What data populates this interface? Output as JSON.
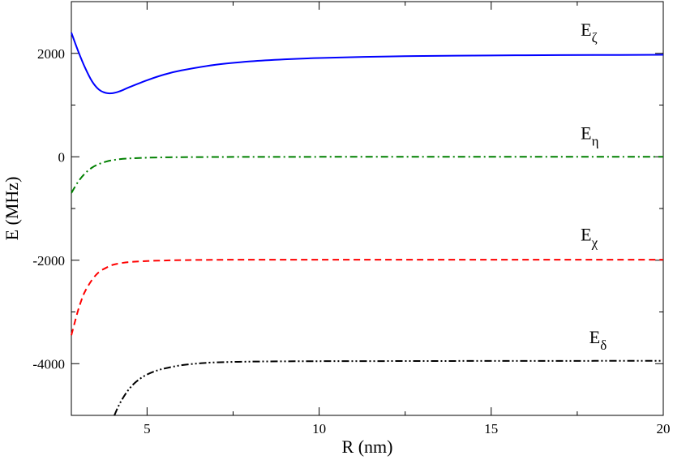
{
  "chart_data": {
    "type": "line",
    "xlabel": "R (nm)",
    "ylabel": "E (MHz)",
    "xlim": [
      2.8,
      20
    ],
    "ylim": [
      -5000,
      3000
    ],
    "xticks": [
      5,
      10,
      15,
      20
    ],
    "yticks": [
      -4000,
      -2000,
      0,
      2000
    ],
    "x_minor_step": 2.5,
    "y_minor_step": 1000,
    "grid": false,
    "series": [
      {
        "name": "E_ζ",
        "label_base": "E",
        "label_sub": "ζ",
        "color": "#0000ff",
        "dash": "solid",
        "x": [
          2.8,
          3.0,
          3.2,
          3.4,
          3.6,
          3.8,
          4.0,
          4.2,
          4.5,
          5.0,
          5.5,
          6.0,
          7.0,
          8.0,
          9.0,
          10.0,
          12.0,
          14.0,
          16.0,
          18.0,
          20.0
        ],
        "y": [
          2400,
          2040,
          1720,
          1460,
          1300,
          1235,
          1230,
          1265,
          1350,
          1480,
          1590,
          1670,
          1780,
          1845,
          1885,
          1910,
          1940,
          1955,
          1963,
          1968,
          1972
        ]
      },
      {
        "name": "E_η",
        "label_base": "E",
        "label_sub": "η",
        "color": "#008000",
        "dash": "dash-dot",
        "x": [
          2.8,
          3.0,
          3.2,
          3.4,
          3.6,
          3.8,
          4.0,
          4.3,
          4.6,
          5.0,
          5.5,
          6.0,
          7.0,
          8.0,
          10.0,
          14.0,
          20.0
        ],
        "y": [
          -700,
          -480,
          -320,
          -210,
          -140,
          -95,
          -65,
          -40,
          -28,
          -18,
          -11,
          -7,
          -4,
          -2,
          -1,
          0,
          0
        ]
      },
      {
        "name": "E_χ",
        "label_base": "E",
        "label_sub": "χ",
        "color": "#ff0000",
        "dash": "dashed",
        "x": [
          2.8,
          2.9,
          3.0,
          3.1,
          3.2,
          3.4,
          3.6,
          3.8,
          4.0,
          4.3,
          4.6,
          5.0,
          5.5,
          6.0,
          7.0,
          8.0,
          10.0,
          14.0,
          20.0
        ],
        "y": [
          -3450,
          -3200,
          -2960,
          -2760,
          -2600,
          -2380,
          -2230,
          -2150,
          -2090,
          -2050,
          -2030,
          -2015,
          -2005,
          -1998,
          -1992,
          -1990,
          -1990,
          -1990,
          -1990
        ]
      },
      {
        "name": "E_δ",
        "label_base": "E",
        "label_sub": "δ",
        "color": "#000000",
        "dash": "dash-dot-dot",
        "x": [
          4.05,
          4.2,
          4.4,
          4.6,
          4.8,
          5.0,
          5.3,
          5.6,
          6.0,
          6.5,
          7.0,
          8.0,
          9.0,
          10.0,
          12.0,
          14.0,
          16.0,
          18.0,
          20.0
        ],
        "y": [
          -5000,
          -4780,
          -4560,
          -4400,
          -4290,
          -4210,
          -4130,
          -4080,
          -4030,
          -3995,
          -3975,
          -3960,
          -3955,
          -3952,
          -3950,
          -3948,
          -3947,
          -3946,
          -3945
        ]
      }
    ],
    "series_labels_anchor": [
      {
        "x": 17.6,
        "y": 2340
      },
      {
        "x": 17.6,
        "y": 340
      },
      {
        "x": 17.6,
        "y": -1620
      },
      {
        "x": 17.85,
        "y": -3600
      }
    ]
  }
}
